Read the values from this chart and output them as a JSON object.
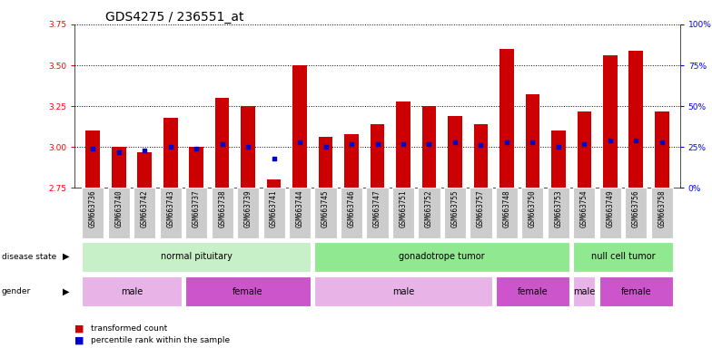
{
  "title": "GDS4275 / 236551_at",
  "samples": [
    "GSM663736",
    "GSM663740",
    "GSM663742",
    "GSM663743",
    "GSM663737",
    "GSM663738",
    "GSM663739",
    "GSM663741",
    "GSM663744",
    "GSM663745",
    "GSM663746",
    "GSM663747",
    "GSM663751",
    "GSM663752",
    "GSM663755",
    "GSM663757",
    "GSM663748",
    "GSM663750",
    "GSM663753",
    "GSM663754",
    "GSM663749",
    "GSM663756",
    "GSM663758"
  ],
  "transformed_count": [
    3.1,
    3.0,
    2.97,
    3.18,
    3.0,
    3.3,
    3.25,
    2.8,
    3.5,
    3.06,
    3.08,
    3.14,
    3.28,
    3.25,
    3.19,
    3.14,
    3.6,
    3.32,
    3.1,
    3.22,
    3.56,
    3.59,
    3.22
  ],
  "percentile_rank": [
    24,
    22,
    23,
    25,
    24,
    27,
    25,
    18,
    28,
    25,
    27,
    27,
    27,
    27,
    28,
    26,
    28,
    28,
    25,
    27,
    29,
    29,
    28
  ],
  "ylim_left": [
    2.75,
    3.75
  ],
  "ylim_right": [
    0,
    100
  ],
  "yticks_left": [
    2.75,
    3.0,
    3.25,
    3.5,
    3.75
  ],
  "yticks_right": [
    0,
    25,
    50,
    75,
    100
  ],
  "disease_state_groups": [
    {
      "label": "normal pituitary",
      "start": 0,
      "end": 8,
      "color": "#c8f0c8"
    },
    {
      "label": "gonadotrope tumor",
      "start": 9,
      "end": 18,
      "color": "#90e890"
    },
    {
      "label": "null cell tumor",
      "start": 19,
      "end": 22,
      "color": "#90e890"
    }
  ],
  "gender_groups": [
    {
      "label": "male",
      "start": 0,
      "end": 3,
      "color": "#e8b4e8"
    },
    {
      "label": "female",
      "start": 4,
      "end": 8,
      "color": "#cc55cc"
    },
    {
      "label": "male",
      "start": 9,
      "end": 15,
      "color": "#e8b4e8"
    },
    {
      "label": "female",
      "start": 16,
      "end": 18,
      "color": "#cc55cc"
    },
    {
      "label": "male",
      "start": 19,
      "end": 19,
      "color": "#e8b4e8"
    },
    {
      "label": "female",
      "start": 20,
      "end": 22,
      "color": "#cc55cc"
    }
  ],
  "bar_color": "#cc0000",
  "dot_color": "#0000cc",
  "bar_width": 0.55,
  "title_fontsize": 10,
  "tick_fontsize": 6.5,
  "label_fontsize": 7.5
}
